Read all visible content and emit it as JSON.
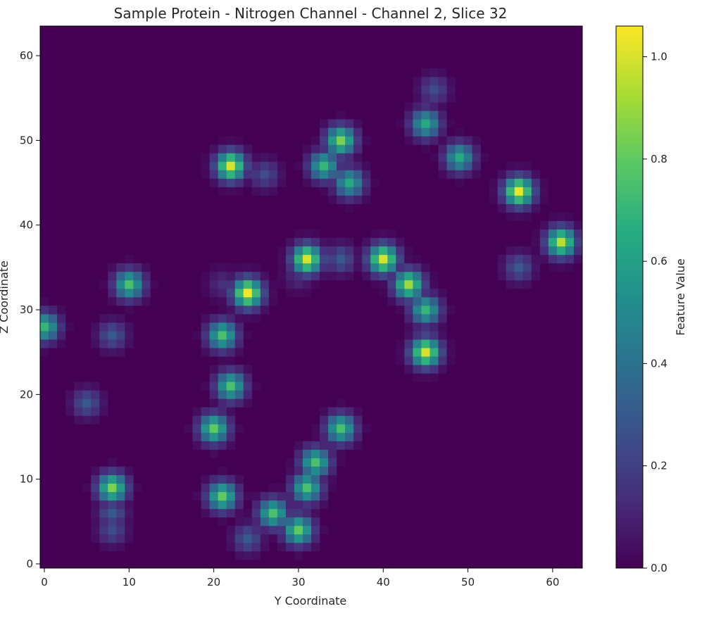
{
  "chart_data": {
    "type": "heatmap",
    "title": "Sample Protein - Nitrogen Channel - Channel 2, Slice 32",
    "xlabel": "Y Coordinate",
    "ylabel": "Z Coordinate",
    "xlim": [
      -0.5,
      63.5
    ],
    "ylim": [
      -0.5,
      63.5
    ],
    "x_ticks": [
      0,
      10,
      20,
      30,
      40,
      50,
      60
    ],
    "y_ticks": [
      0,
      10,
      20,
      30,
      40,
      50,
      60
    ],
    "grid": false,
    "colormap": "viridis",
    "colorbar": {
      "label": "Feature Value",
      "range": [
        0.0,
        1.06
      ],
      "ticks": [
        "0.0",
        "0.2",
        "0.4",
        "0.6",
        "0.8",
        "1.0"
      ]
    },
    "peaks": [
      {
        "y": 22,
        "z": 47,
        "value": 1.0
      },
      {
        "y": 26,
        "z": 46,
        "value": 0.25
      },
      {
        "y": 35,
        "z": 50,
        "value": 0.85
      },
      {
        "y": 33,
        "z": 47,
        "value": 0.7
      },
      {
        "y": 36,
        "z": 45,
        "value": 0.65
      },
      {
        "y": 45,
        "z": 52,
        "value": 0.65
      },
      {
        "y": 46,
        "z": 56,
        "value": 0.25
      },
      {
        "y": 49,
        "z": 48,
        "value": 0.65
      },
      {
        "y": 56,
        "z": 44,
        "value": 1.03
      },
      {
        "y": 61,
        "z": 38,
        "value": 0.95
      },
      {
        "y": 56,
        "z": 35,
        "value": 0.3
      },
      {
        "y": 31,
        "z": 36,
        "value": 1.0
      },
      {
        "y": 35,
        "z": 36,
        "value": 0.3
      },
      {
        "y": 30,
        "z": 34,
        "value": 0.15
      },
      {
        "y": 40,
        "z": 36,
        "value": 1.0
      },
      {
        "y": 43,
        "z": 33,
        "value": 0.9
      },
      {
        "y": 45,
        "z": 30,
        "value": 0.7
      },
      {
        "y": 45,
        "z": 25,
        "value": 1.0
      },
      {
        "y": 24,
        "z": 32,
        "value": 1.05
      },
      {
        "y": 21,
        "z": 33,
        "value": 0.15
      },
      {
        "y": 10,
        "z": 33,
        "value": 0.75
      },
      {
        "y": 0,
        "z": 28,
        "value": 0.7
      },
      {
        "y": 8,
        "z": 27,
        "value": 0.3
      },
      {
        "y": 21,
        "z": 27,
        "value": 0.75
      },
      {
        "y": 22,
        "z": 21,
        "value": 0.75
      },
      {
        "y": 5,
        "z": 19,
        "value": 0.3
      },
      {
        "y": 20,
        "z": 16,
        "value": 0.8
      },
      {
        "y": 35,
        "z": 16,
        "value": 0.75
      },
      {
        "y": 32,
        "z": 12,
        "value": 0.75
      },
      {
        "y": 31,
        "z": 9,
        "value": 0.75
      },
      {
        "y": 8,
        "z": 9,
        "value": 0.85
      },
      {
        "y": 8,
        "z": 6,
        "value": 0.3
      },
      {
        "y": 8,
        "z": 4,
        "value": 0.25
      },
      {
        "y": 21,
        "z": 8,
        "value": 0.8
      },
      {
        "y": 27,
        "z": 6,
        "value": 0.75
      },
      {
        "y": 30,
        "z": 4,
        "value": 0.8
      },
      {
        "y": 24,
        "z": 3,
        "value": 0.3
      }
    ]
  }
}
